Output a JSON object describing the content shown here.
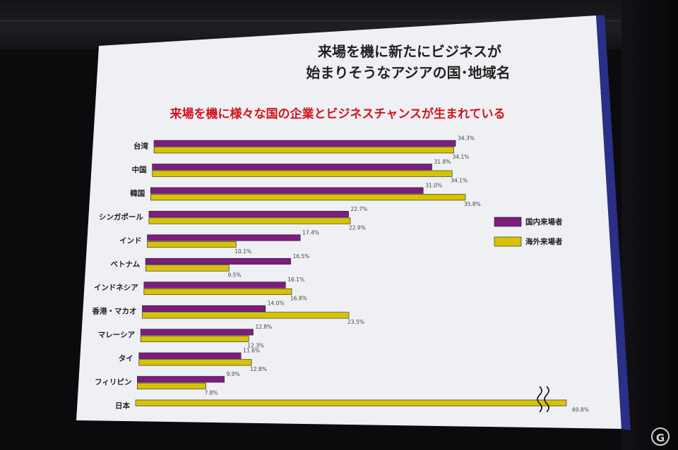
{
  "slide": {
    "title_line1": "来場を機に新たにビジネスが",
    "title_line2": "始まりそうなアジアの国･地域名",
    "subtitle": "来場を機に様々な国の企業とビジネスチャンスが生まれている"
  },
  "colors": {
    "series_domestic": "#7c1d7e",
    "series_overseas": "#d6c306"
  },
  "chart_data": {
    "type": "bar",
    "orientation": "horizontal",
    "title": "来場を機に新たにビジネスが始まりそうなアジアの国･地域名",
    "subtitle": "来場を機に様々な国の企業とビジネスチャンスが生まれている",
    "categories": [
      "台湾",
      "中国",
      "韓国",
      "シンガポール",
      "インド",
      "ベトナム",
      "インドネシア",
      "香港・マカオ",
      "マレーシア",
      "タイ",
      "フィリピン",
      "日本"
    ],
    "series": [
      {
        "name": "国内来場者",
        "values": [
          34.3,
          31.8,
          31.0,
          22.7,
          17.4,
          16.5,
          16.1,
          14.0,
          12.8,
          11.6,
          9.9,
          null
        ],
        "labels": [
          "34.3%",
          "31.8%",
          "31.0%",
          "22.7%",
          "17.4%",
          "16.5%",
          "16.1%",
          "14.0%",
          "12.8%",
          "11.6%",
          "9.9%",
          ""
        ]
      },
      {
        "name": "海外来場者",
        "values": [
          34.1,
          34.1,
          35.8,
          22.9,
          10.1,
          9.5,
          16.8,
          23.5,
          12.3,
          12.8,
          7.8,
          69.8
        ],
        "labels": [
          "34.1%",
          "34.1%",
          "35.8%",
          "22.9%",
          "10.1%",
          "9.5%",
          "16.8%",
          "23.5%",
          "12.3%",
          "12.8%",
          "7.8%",
          "69.8%"
        ]
      }
    ],
    "axis_break": {
      "category": "日本",
      "series": "海外来場者"
    },
    "xlim": [
      0,
      40
    ],
    "grid": false,
    "legend": "right"
  }
}
